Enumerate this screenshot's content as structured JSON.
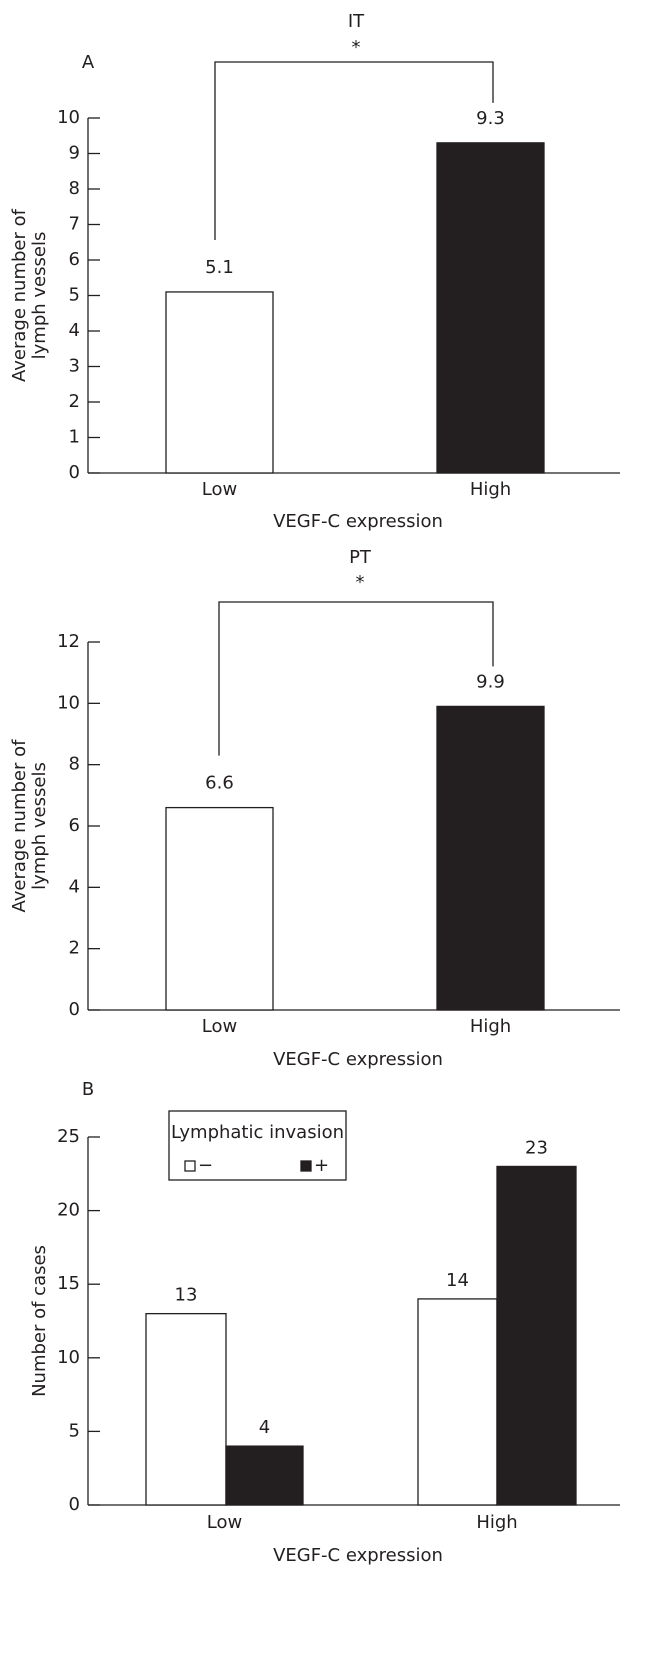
{
  "chart_data": [
    {
      "type": "bar",
      "panel": "A",
      "title": "IT",
      "significance": "*",
      "ylabel": [
        "Average number of",
        "lymph vessels"
      ],
      "xlabel": "VEGF-C expression",
      "categories": [
        "Low",
        "High"
      ],
      "series": [
        {
          "values": [
            5.1,
            9.3
          ],
          "colors": [
            "#ffffff",
            "#231f20"
          ]
        }
      ],
      "ylim": [
        0,
        10
      ],
      "yticks": [
        0,
        1,
        2,
        3,
        4,
        5,
        6,
        7,
        8,
        9,
        10
      ]
    },
    {
      "type": "bar",
      "title": "PT",
      "significance": "*",
      "ylabel": [
        "Average number of",
        "lymph vessels"
      ],
      "xlabel": "VEGF-C expression",
      "categories": [
        "Low",
        "High"
      ],
      "series": [
        {
          "values": [
            6.6,
            9.9
          ],
          "colors": [
            "#ffffff",
            "#231f20"
          ]
        }
      ],
      "ylim": [
        0,
        12
      ],
      "yticks": [
        0,
        2,
        4,
        6,
        8,
        10,
        12
      ]
    },
    {
      "type": "grouped-bar",
      "panel": "B",
      "ylabel": [
        "Number of cases"
      ],
      "xlabel": "VEGF-C expression",
      "categories": [
        "Low",
        "High"
      ],
      "legend_title": "Lymphatic invasion",
      "series": [
        {
          "name": "−",
          "color": "#ffffff",
          "values": [
            13,
            14
          ]
        },
        {
          "name": "+",
          "color": "#231f20",
          "values": [
            4,
            23
          ]
        }
      ],
      "ylim": [
        0,
        25
      ],
      "yticks": [
        0,
        5,
        10,
        15,
        20,
        25
      ]
    }
  ]
}
